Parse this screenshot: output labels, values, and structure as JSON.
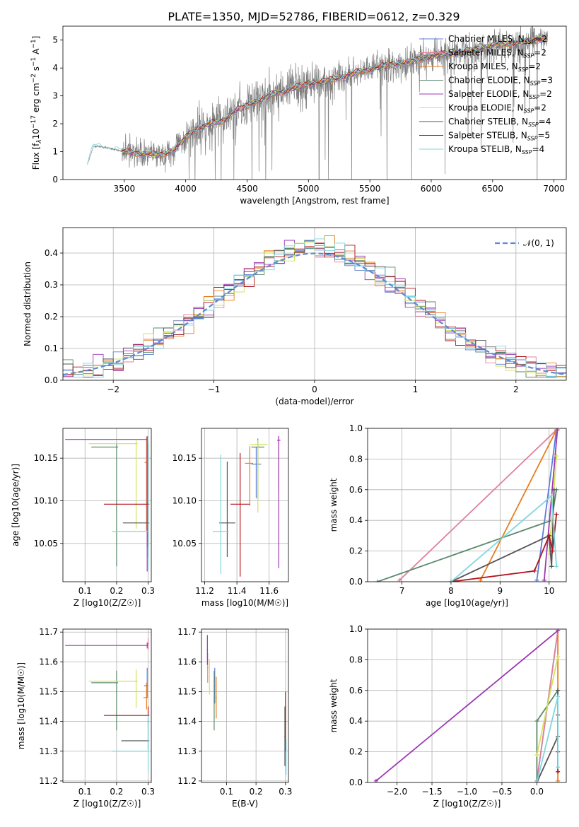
{
  "figure_title": "PLATE=1350, MJD=52786, FIBERID=0612, z=0.329",
  "models": [
    {
      "name": "Chabrier MILES",
      "nssp": "2",
      "color": "#5a7fd6"
    },
    {
      "name": "Salpeter MILES",
      "nssp": "2",
      "color": "#e1809f"
    },
    {
      "name": "Kroupa MILES",
      "nssp": "2",
      "color": "#e87e1e"
    },
    {
      "name": "Chabrier ELODIE",
      "nssp": "3",
      "color": "#5b8a6b"
    },
    {
      "name": "Salpeter ELODIE",
      "nssp": "2",
      "color": "#9c39b3"
    },
    {
      "name": "Kroupa ELODIE",
      "nssp": "2",
      "color": "#d2e35a"
    },
    {
      "name": "Chabrier STELIB",
      "nssp": "4",
      "color": "#555555"
    },
    {
      "name": "Salpeter STELIB",
      "nssp": "5",
      "color": "#b0151b"
    },
    {
      "name": "Kroupa STELIB",
      "nssp": "4",
      "color": "#7fd6df"
    }
  ],
  "chart_data": [
    {
      "id": "spectrum",
      "type": "line",
      "xlabel_prefix": "wavelength [Angstrom, rest frame]",
      "ylabel": "Flux [f",
      "ylabel_parts": [
        "Flux [f",
        "λ",
        "10",
        "−17",
        " erg cm",
        "−2",
        " s",
        "−1",
        " A",
        "−1",
        "]"
      ],
      "xlim": [
        3000,
        7100
      ],
      "ylim": [
        0,
        5.5
      ],
      "xticks": [
        3500,
        4000,
        4500,
        5000,
        5500,
        6000,
        6500,
        7000
      ],
      "yticks": [
        0,
        1,
        2,
        3,
        4,
        5
      ],
      "data_color": "#808080",
      "continuum": {
        "x": [
          3200,
          3250,
          3300,
          3400,
          3500,
          3600,
          3700,
          3800,
          3900,
          4000,
          4100,
          4200,
          4300,
          4400,
          4500,
          4600,
          4700,
          4800,
          4900,
          5000,
          5100,
          5200,
          5300,
          5400,
          5500,
          5600,
          5700,
          5800,
          5900,
          6000,
          6100,
          6200,
          6300,
          6400,
          6500,
          6600,
          6700,
          6800,
          6900
        ],
        "y": [
          0.55,
          1.2,
          1.18,
          1.1,
          1.0,
          0.95,
          0.9,
          0.88,
          1.05,
          1.5,
          1.85,
          2.0,
          2.1,
          2.45,
          2.65,
          2.85,
          3.05,
          3.15,
          3.3,
          3.45,
          3.5,
          3.6,
          3.7,
          3.85,
          3.95,
          4.05,
          4.15,
          4.2,
          4.3,
          4.4,
          4.5,
          4.55,
          4.6,
          4.7,
          4.8,
          4.85,
          4.9,
          4.95,
          5.05
        ]
      },
      "legend_position": "upper right"
    },
    {
      "id": "residuals",
      "type": "histogram",
      "xlabel": "(data-model)/error",
      "ylabel": "Normed distribution",
      "xlim": [
        -2.5,
        2.5
      ],
      "ylim": [
        0,
        0.48
      ],
      "xticks": [
        -2,
        -1,
        0,
        1,
        2
      ],
      "yticks": [
        0.0,
        0.1,
        0.2,
        0.3,
        0.4
      ],
      "grid": true,
      "reference_label": "𝒩(0, 1)",
      "reference": {
        "mean": 0,
        "sigma": 1,
        "color": "#5b8ad6"
      },
      "bin_width": 0.1,
      "legend_position": "upper right"
    },
    {
      "id": "age_vs_Z",
      "type": "errorbar",
      "xlabel": "Z [log10(Z/Z☉)]",
      "ylabel": "age  [log10(age/yr)]",
      "xlim": [
        0.03,
        0.31
      ],
      "ylim": [
        10.005,
        10.185
      ],
      "xticks": [
        0.1,
        0.2,
        0.3
      ],
      "yticks": [
        10.05,
        10.1,
        10.15
      ],
      "grid": true,
      "points": [
        {
          "m": 0,
          "x": 0.297,
          "y": 10.145,
          "xerr": [
            0.005,
            0.003
          ],
          "yerr": [
            0.1,
            0.03
          ]
        },
        {
          "m": 1,
          "x": 0.297,
          "y": 10.17,
          "xerr": [
            0.003,
            0.003
          ],
          "yerr": [
            0.12,
            0.005
          ]
        },
        {
          "m": 2,
          "x": 0.295,
          "y": 10.145,
          "xerr": [
            0.006,
            0.004
          ],
          "yerr": [
            0.08,
            0.03
          ]
        },
        {
          "m": 3,
          "x": 0.2,
          "y": 10.163,
          "xerr": [
            0.08,
            0.005
          ],
          "yerr": [
            0.14,
            0.005
          ]
        },
        {
          "m": 4,
          "x": 0.297,
          "y": 10.172,
          "xerr": [
            0.26,
            0.003
          ],
          "yerr": [
            0.155,
            0.004
          ]
        },
        {
          "m": 5,
          "x": 0.262,
          "y": 10.167,
          "xerr": [
            0.15,
            0.005
          ],
          "yerr": [
            0.1,
            0.005
          ]
        },
        {
          "m": 6,
          "x": 0.3,
          "y": 10.074,
          "xerr": [
            0.08,
            0.004
          ],
          "yerr": [
            0.04,
            0.095
          ]
        },
        {
          "m": 7,
          "x": 0.3,
          "y": 10.096,
          "xerr": [
            0.14,
            0.004
          ],
          "yerr": [
            0.05,
            0.07
          ]
        },
        {
          "m": 8,
          "x": 0.3,
          "y": 10.064,
          "xerr": [
            0.115,
            0.003
          ],
          "yerr": [
            0.045,
            0.11
          ]
        }
      ]
    },
    {
      "id": "age_vs_mass",
      "type": "errorbar",
      "xlabel": "mass [log10(M/M☉)]",
      "ylabel": "",
      "xlim": [
        11.18,
        11.72
      ],
      "ylim": [
        10.005,
        10.185
      ],
      "xticks": [
        11.2,
        11.4,
        11.6
      ],
      "yticks": [
        10.05,
        10.1,
        10.15
      ],
      "grid": true,
      "points": [
        {
          "m": 0,
          "x": 11.52,
          "y": 10.143,
          "xerr": [
            0.03,
            0.03
          ],
          "yerr": [
            0.04,
            0.02
          ]
        },
        {
          "m": 1,
          "x": 11.66,
          "y": 10.171,
          "xerr": [
            0.01,
            0.01
          ],
          "yerr": [
            0.06,
            0.005
          ]
        },
        {
          "m": 2,
          "x": 11.48,
          "y": 10.144,
          "xerr": [
            0.03,
            0.02
          ],
          "yerr": [
            0.05,
            0.02
          ]
        },
        {
          "m": 3,
          "x": 11.53,
          "y": 10.163,
          "xerr": [
            0.04,
            0.04
          ],
          "yerr": [
            0.06,
            0.01
          ]
        },
        {
          "m": 4,
          "x": 11.66,
          "y": 10.171,
          "xerr": [
            0.01,
            0.01
          ],
          "yerr": [
            0.15,
            0.005
          ]
        },
        {
          "m": 5,
          "x": 11.53,
          "y": 10.166,
          "xerr": [
            0.05,
            0.06
          ],
          "yerr": [
            0.08,
            0.005
          ]
        },
        {
          "m": 6,
          "x": 11.34,
          "y": 10.074,
          "xerr": [
            0.05,
            0.05
          ],
          "yerr": [
            0.04,
            0.072
          ]
        },
        {
          "m": 7,
          "x": 11.42,
          "y": 10.096,
          "xerr": [
            0.06,
            0.06
          ],
          "yerr": [
            0.085,
            0.06
          ]
        },
        {
          "m": 8,
          "x": 11.3,
          "y": 10.064,
          "xerr": [
            0.05,
            0.05
          ],
          "yerr": [
            0.05,
            0.09
          ]
        }
      ]
    },
    {
      "id": "weight_vs_age",
      "type": "line",
      "xlabel": "age  [log10(age/yr)]",
      "ylabel": "mass weight",
      "xlim": [
        6.3,
        10.35
      ],
      "ylim": [
        0,
        1.0
      ],
      "xticks": [
        7,
        8,
        9,
        10
      ],
      "yticks": [
        0.0,
        0.2,
        0.4,
        0.6,
        0.8,
        1.0
      ],
      "grid": true,
      "series": [
        {
          "m": 0,
          "x": [
            9.75,
            10.15
          ],
          "y": [
            0.01,
            0.99
          ]
        },
        {
          "m": 1,
          "x": [
            6.95,
            10.15
          ],
          "y": [
            0.01,
            0.99
          ]
        },
        {
          "m": 2,
          "x": [
            8.6,
            10.15
          ],
          "y": [
            0.01,
            0.99
          ]
        },
        {
          "m": 3,
          "x": [
            6.5,
            10.05,
            10.15
          ],
          "y": [
            0.0,
            0.4,
            0.6
          ]
        },
        {
          "m": 4,
          "x": [
            9.9,
            10.17
          ],
          "y": [
            0.01,
            0.99
          ]
        },
        {
          "m": 5,
          "x": [
            10.0,
            10.15
          ],
          "y": [
            0.18,
            0.82
          ]
        },
        {
          "m": 6,
          "x": [
            8.0,
            10.0,
            10.05,
            10.1
          ],
          "y": [
            0.0,
            0.3,
            0.1,
            0.6
          ]
        },
        {
          "m": 7,
          "x": [
            8.0,
            9.7,
            10.0,
            10.07,
            10.15
          ],
          "y": [
            0.0,
            0.07,
            0.3,
            0.2,
            0.44
          ]
        },
        {
          "m": 8,
          "x": [
            8.0,
            10.05,
            10.15
          ],
          "y": [
            0.0,
            0.56,
            0.1
          ]
        }
      ]
    },
    {
      "id": "mass_vs_Z",
      "type": "errorbar",
      "xlabel": "Z [log10(Z/Z☉)]",
      "ylabel": "mass [log10(M/M☉)]",
      "xlim": [
        0.03,
        0.31
      ],
      "ylim": [
        11.195,
        11.71
      ],
      "xticks": [
        0.1,
        0.2,
        0.3
      ],
      "yticks": [
        11.2,
        11.3,
        11.4,
        11.5,
        11.6,
        11.7
      ],
      "grid": true,
      "points": [
        {
          "m": 0,
          "x": 0.297,
          "y": 11.52,
          "xerr": [
            0.01,
            0.003
          ],
          "yerr": [
            0.04,
            0.06
          ]
        },
        {
          "m": 1,
          "x": 0.3,
          "y": 11.66,
          "xerr": [
            0.003,
            0.003
          ],
          "yerr": [
            0.02,
            0.02
          ]
        },
        {
          "m": 2,
          "x": 0.295,
          "y": 11.48,
          "xerr": [
            0.01,
            0.005
          ],
          "yerr": [
            0.04,
            0.05
          ]
        },
        {
          "m": 3,
          "x": 0.2,
          "y": 11.53,
          "xerr": [
            0.08,
            0.005
          ],
          "yerr": [
            0.16,
            0.04
          ]
        },
        {
          "m": 4,
          "x": 0.297,
          "y": 11.655,
          "xerr": [
            0.26,
            0.003
          ],
          "yerr": [
            0.01,
            0.01
          ]
        },
        {
          "m": 5,
          "x": 0.262,
          "y": 11.535,
          "xerr": [
            0.15,
            0.005
          ],
          "yerr": [
            0.09,
            0.04
          ]
        },
        {
          "m": 6,
          "x": 0.3,
          "y": 11.335,
          "xerr": [
            0.085,
            0.004
          ],
          "yerr": [
            0.03,
            0.07
          ]
        },
        {
          "m": 7,
          "x": 0.3,
          "y": 11.42,
          "xerr": [
            0.14,
            0.004
          ],
          "yerr": [
            0.03,
            0.03
          ]
        },
        {
          "m": 8,
          "x": 0.3,
          "y": 11.3,
          "xerr": [
            0.115,
            0.003
          ],
          "yerr": [
            0.07,
            0.12
          ]
        }
      ]
    },
    {
      "id": "mass_vs_ebv",
      "type": "errorbar",
      "xlabel": "E(B-V)",
      "ylabel": "",
      "xlim": [
        0.015,
        0.31
      ],
      "ylim": [
        11.195,
        11.71
      ],
      "xticks": [
        0.1,
        0.2,
        0.3
      ],
      "yticks": [
        11.2,
        11.3,
        11.4,
        11.5,
        11.6,
        11.7
      ],
      "grid": true,
      "points": [
        {
          "m": 0,
          "x": 0.06,
          "y": 11.52,
          "xerr": [
            0.002,
            0.002
          ],
          "yerr": [
            0.06,
            0.06
          ]
        },
        {
          "m": 1,
          "x": 0.036,
          "y": 11.58,
          "xerr": [
            0.002,
            0.002
          ],
          "yerr": [
            0.05,
            0.05
          ]
        },
        {
          "m": 2,
          "x": 0.065,
          "y": 11.48,
          "xerr": [
            0.002,
            0.002
          ],
          "yerr": [
            0.07,
            0.07
          ]
        },
        {
          "m": 3,
          "x": 0.058,
          "y": 11.47,
          "xerr": [
            0.002,
            0.002
          ],
          "yerr": [
            0.1,
            0.1
          ]
        },
        {
          "m": 4,
          "x": 0.035,
          "y": 11.64,
          "xerr": [
            0.002,
            0.002
          ],
          "yerr": [
            0.05,
            0.05
          ]
        },
        {
          "m": 5,
          "x": 0.042,
          "y": 11.55,
          "xerr": [
            0.002,
            0.002
          ],
          "yerr": [
            0.06,
            0.06
          ]
        },
        {
          "m": 6,
          "x": 0.298,
          "y": 11.35,
          "xerr": [
            0.002,
            0.002
          ],
          "yerr": [
            0.1,
            0.1
          ]
        },
        {
          "m": 7,
          "x": 0.3,
          "y": 11.4,
          "xerr": [
            0.002,
            0.002
          ],
          "yerr": [
            0.1,
            0.1
          ]
        },
        {
          "m": 8,
          "x": 0.302,
          "y": 11.28,
          "xerr": [
            0.002,
            0.002
          ],
          "yerr": [
            0.06,
            0.06
          ]
        }
      ]
    },
    {
      "id": "weight_vs_Z",
      "type": "line",
      "xlabel": "Z [log10(Z/Z☉)]",
      "ylabel": "mass weight",
      "xlim": [
        -2.42,
        0.42
      ],
      "ylim": [
        0,
        1.0
      ],
      "xticks": [
        -2.0,
        -1.5,
        -1.0,
        -0.5,
        0.0
      ],
      "yticks": [
        0.0,
        0.2,
        0.4,
        0.6,
        0.8,
        1.0
      ],
      "grid": true,
      "series": [
        {
          "m": 0,
          "x": [
            0.0,
            0.3
          ],
          "y": [
            0.01,
            0.99
          ]
        },
        {
          "m": 1,
          "x": [
            0.0,
            0.3
          ],
          "y": [
            0.01,
            0.99
          ]
        },
        {
          "m": 2,
          "x": [
            0.3,
            0.3
          ],
          "y": [
            0.01,
            0.99
          ]
        },
        {
          "m": 3,
          "x": [
            0.0,
            0.0,
            0.3
          ],
          "y": [
            0.0,
            0.4,
            0.6
          ]
        },
        {
          "m": 4,
          "x": [
            -2.3,
            0.3
          ],
          "y": [
            0.01,
            0.99
          ]
        },
        {
          "m": 5,
          "x": [
            0.0,
            0.3
          ],
          "y": [
            0.18,
            0.82
          ]
        },
        {
          "m": 6,
          "x": [
            0.0,
            0.3,
            0.3
          ],
          "y": [
            0.0,
            0.3,
            0.6
          ]
        },
        {
          "m": 7,
          "x": [
            0.3,
            0.3,
            0.3
          ],
          "y": [
            0.07,
            0.2,
            0.44
          ]
        },
        {
          "m": 8,
          "x": [
            0.0,
            0.3,
            0.3
          ],
          "y": [
            0.0,
            0.56,
            0.1
          ]
        }
      ]
    }
  ]
}
